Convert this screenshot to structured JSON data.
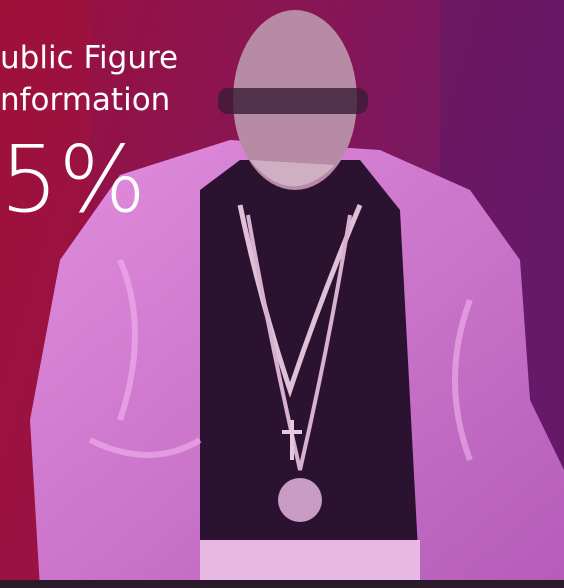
{
  "card": {
    "title_lines": [
      "ublic Figure",
      "nformation"
    ],
    "stat": "5%"
  }
}
